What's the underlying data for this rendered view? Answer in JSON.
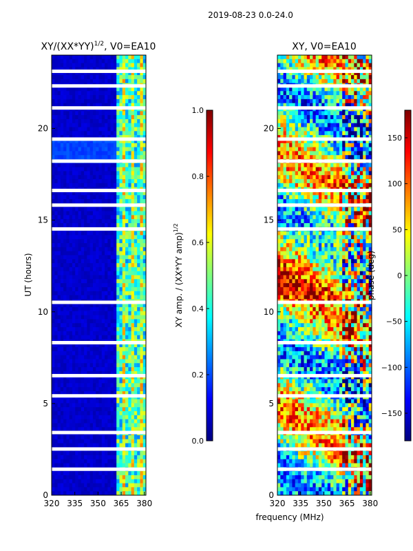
{
  "figure": {
    "suptitle": "2019-08-23 0.0-24.0"
  },
  "colors": {
    "jet": [
      "#00007f",
      "#0000ff",
      "#007fff",
      "#00ffff",
      "#7fff7f",
      "#ffff00",
      "#ff7f00",
      "#ff0000",
      "#7f0000"
    ]
  },
  "chart_data": [
    {
      "type": "heatmap",
      "title": "XY/(XX*YY)^1/2, V0=EA10",
      "title_main": "XY/(XX*YY)",
      "title_sup": "1/2",
      "title_rest": ", V0=EA10",
      "xlabel": "",
      "ylabel": "UT (hours)",
      "xlim": [
        320,
        381
      ],
      "ylim": [
        0,
        24
      ],
      "xticks": [
        "320",
        "335",
        "350",
        "365",
        "380"
      ],
      "yticks": [
        "0",
        "5",
        "10",
        "15",
        "20"
      ],
      "colorbar": {
        "label_main": "XY amp. / (XX*YY amp)",
        "label_sup": "1/2",
        "range": [
          0.0,
          1.0
        ],
        "ticks": [
          "0.0",
          "0.2",
          "0.4",
          "0.6",
          "0.8",
          "1.0"
        ]
      },
      "flagged_rows_hours": [
        23.1,
        22.3,
        21.1,
        19.4,
        18.2,
        16.6,
        15.8,
        14.5,
        10.5,
        8.3,
        6.5,
        5.4,
        3.4,
        2.5,
        1.4
      ],
      "structure": "low amplitude (~0.05) below 362 MHz; bright striped amplitude (0.3-0.6) between 362 and 381 MHz"
    },
    {
      "type": "heatmap",
      "title": "XY, V0=EA10",
      "xlabel": "frequency (MHz)",
      "ylabel": "",
      "xlim": [
        320,
        381
      ],
      "ylim": [
        0,
        24
      ],
      "xticks": [
        "320",
        "335",
        "350",
        "365",
        "380"
      ],
      "yticks": [
        "0",
        "5",
        "10",
        "15",
        "20"
      ],
      "colorbar": {
        "label": "phase (deg)",
        "range": [
          -180,
          180
        ],
        "ticks": [
          "−150",
          "−100",
          "−50",
          "0",
          "50",
          "100",
          "150"
        ]
      },
      "flagged_rows_hours": [
        23.1,
        22.3,
        21.1,
        19.4,
        18.2,
        16.6,
        15.8,
        14.5,
        10.5,
        8.3,
        6.5,
        5.4,
        3.4,
        2.5,
        1.4
      ],
      "structure": "noisy phase in the range -180..180 deg, banded by time, stronger structure above 362 MHz"
    }
  ]
}
